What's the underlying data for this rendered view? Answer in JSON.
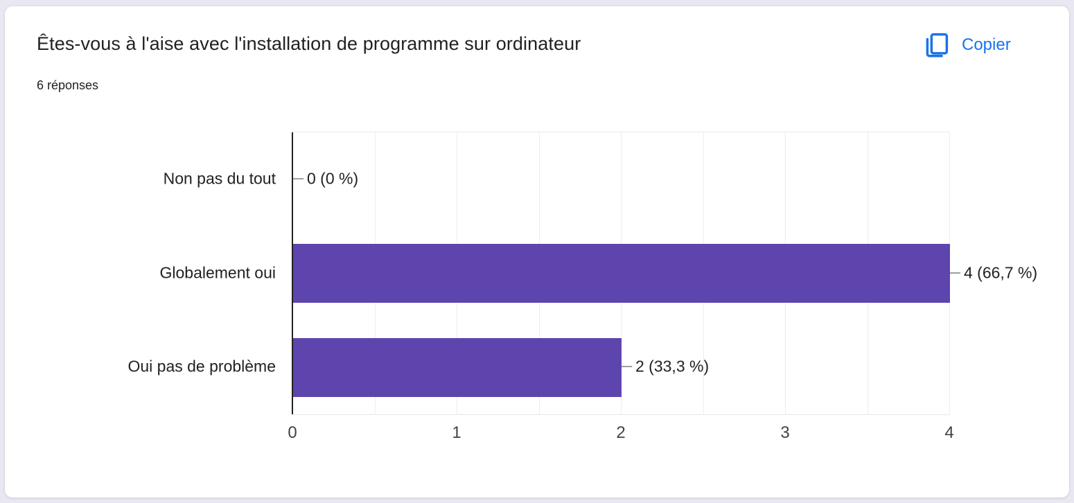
{
  "card": {
    "title": "Êtes-vous à l'aise avec l'installation de programme sur ordinateur",
    "responses_count": "6 réponses",
    "copy_label": "Copier"
  },
  "icons": {
    "copy": "copy-icon"
  },
  "colors": {
    "accent_blue": "#1a73e8",
    "bar_purple": "#5e44ad",
    "page_background": "#e9e7f2",
    "card_border": "#dadce0",
    "text_dark": "#202124",
    "axis_black": "#212121",
    "gridline": "#ebedf0",
    "connector_gray": "#9e9e9e"
  },
  "chart_data": {
    "type": "bar",
    "orientation": "horizontal",
    "title": "Êtes-vous à l'aise avec l'installation de programme sur ordinateur",
    "subtitle": "6 réponses",
    "categories": [
      "Non pas du tout",
      "Globalement oui",
      "Oui pas de problème"
    ],
    "values": [
      0,
      4,
      2
    ],
    "value_labels": [
      "0 (0 %)",
      "4 (66,7 %)",
      "2 (33,3 %)"
    ],
    "total_responses": 6,
    "x_ticks": [
      0,
      1,
      2,
      3,
      4
    ],
    "xlim": [
      0,
      4
    ],
    "grid_step": 0.5,
    "grid": true,
    "legend": "none",
    "xlabel": "",
    "ylabel": ""
  }
}
